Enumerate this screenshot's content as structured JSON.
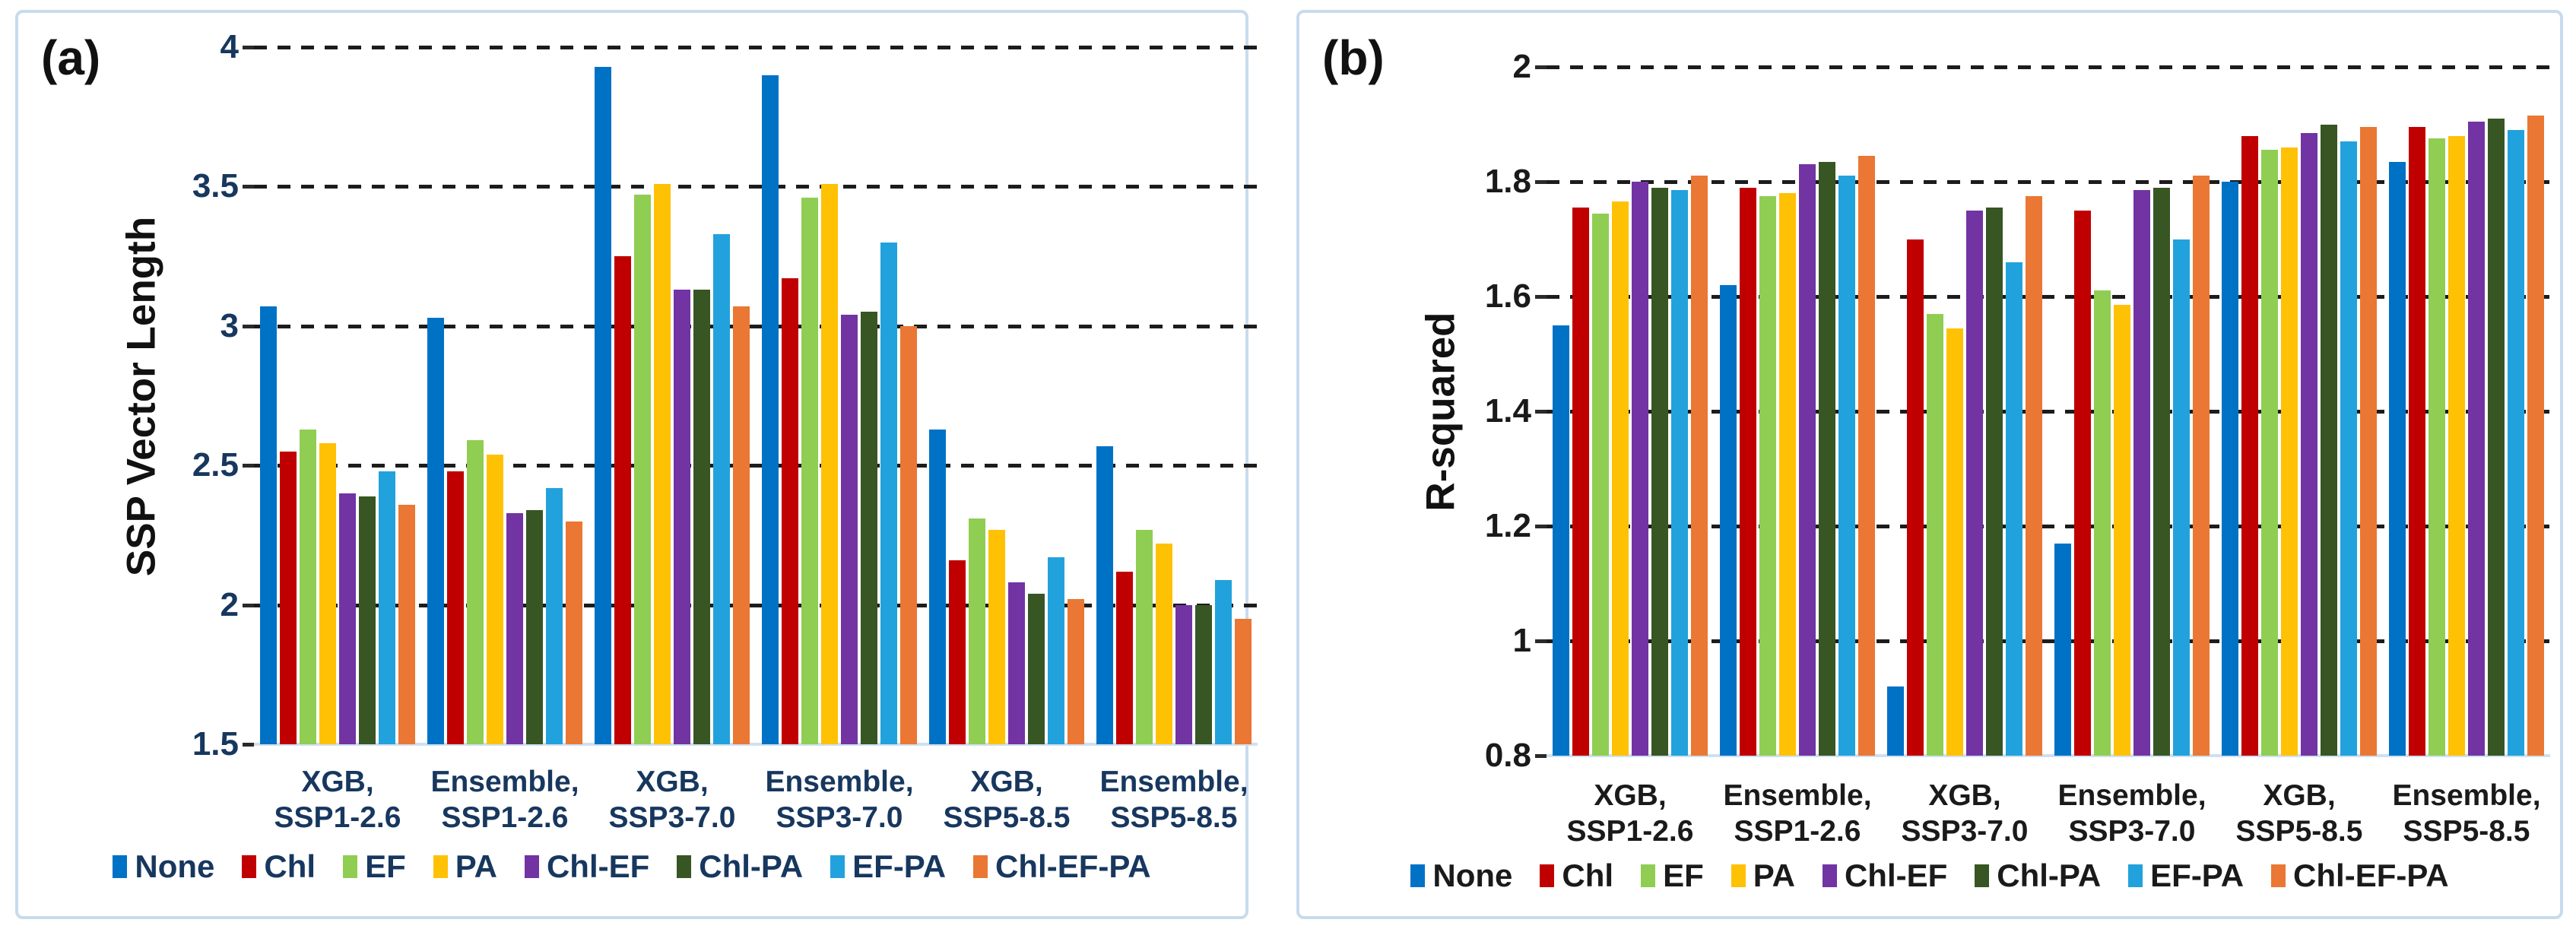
{
  "figure": {
    "background": "#ffffff",
    "panel_border_color": "#c8dbed"
  },
  "series_colors": {
    "None": "#0072C6",
    "Chl": "#C00000",
    "EF": "#8FCE52",
    "PA": "#FFC103",
    "Chl-EF": "#7233A3",
    "Chl-PA": "#375623",
    "EF-PA": "#22A2DC",
    "Chl-EF-PA": "#EA7733"
  },
  "chart_data": [
    {
      "type": "bar",
      "panel_label": "(a)",
      "ylabel": "SSP Vector Length",
      "xlabel": "",
      "ylim": [
        1.5,
        4
      ],
      "grid": "dashed horizontal",
      "legend_position": "bottom",
      "text_color": "#17375E",
      "axis_title_color": "#111111",
      "ticks": [
        {
          "v": 4,
          "label": "4"
        },
        {
          "v": 3.5,
          "label": "3.5"
        },
        {
          "v": 3,
          "label": "3"
        },
        {
          "v": 2.5,
          "label": "2.5"
        },
        {
          "v": 2,
          "label": "2"
        },
        {
          "v": 1.5,
          "label": "1.5"
        }
      ],
      "gridlines": [
        4,
        3.5,
        3,
        2.5,
        2
      ],
      "categories": [
        [
          "XGB,",
          "SSP1-2.6"
        ],
        [
          "Ensemble,",
          "SSP1-2.6"
        ],
        [
          "XGB,",
          "SSP3-7.0"
        ],
        [
          "Ensemble,",
          "SSP3-7.0"
        ],
        [
          "XGB,",
          "SSP5-8.5"
        ],
        [
          "Ensemble,",
          "SSP5-8.5"
        ]
      ],
      "series": [
        {
          "name": "None",
          "color": "#0072C6",
          "values": [
            3.07,
            3.03,
            3.93,
            3.9,
            2.63,
            2.57
          ]
        },
        {
          "name": "Chl",
          "color": "#C00000",
          "values": [
            2.55,
            2.48,
            3.25,
            3.17,
            2.16,
            2.12
          ]
        },
        {
          "name": "EF",
          "color": "#8FCE52",
          "values": [
            2.63,
            2.59,
            3.47,
            3.46,
            2.31,
            2.27
          ]
        },
        {
          "name": "PA",
          "color": "#FFC103",
          "values": [
            2.58,
            2.54,
            3.51,
            3.51,
            2.27,
            2.22
          ]
        },
        {
          "name": "Chl-EF",
          "color": "#7233A3",
          "values": [
            2.4,
            2.33,
            3.13,
            3.04,
            2.08,
            2.0
          ]
        },
        {
          "name": "Chl-PA",
          "color": "#375623",
          "values": [
            2.39,
            2.34,
            3.13,
            3.05,
            2.04,
            2.0
          ]
        },
        {
          "name": "EF-PA",
          "color": "#22A2DC",
          "values": [
            2.48,
            2.42,
            3.33,
            3.3,
            2.17,
            2.09
          ]
        },
        {
          "name": "Chl-EF-PA",
          "color": "#EA7733",
          "values": [
            2.36,
            2.3,
            3.07,
            3.0,
            2.02,
            1.95
          ]
        }
      ]
    },
    {
      "type": "bar",
      "panel_label": "(b)",
      "ylabel": "R-squared",
      "xlabel": "",
      "ylim": [
        0.8,
        2
      ],
      "grid": "dashed horizontal",
      "legend_position": "bottom",
      "text_color": "#1a1a1a",
      "axis_title_color": "#111111",
      "ticks": [
        {
          "v": 2,
          "label": "2"
        },
        {
          "v": 1.8,
          "label": "1.8"
        },
        {
          "v": 1.6,
          "label": "1.6"
        },
        {
          "v": 1.4,
          "label": "1.4"
        },
        {
          "v": 1.2,
          "label": "1.2"
        },
        {
          "v": 1,
          "label": "1"
        },
        {
          "v": 0.8,
          "label": "0.8"
        }
      ],
      "gridlines": [
        2,
        1.8,
        1.6,
        1.4,
        1.2,
        1
      ],
      "categories": [
        [
          "XGB,",
          "SSP1-2.6"
        ],
        [
          "Ensemble,",
          "SSP1-2.6"
        ],
        [
          "XGB,",
          "SSP3-7.0"
        ],
        [
          "Ensemble,",
          "SSP3-7.0"
        ],
        [
          "XGB,",
          "SSP5-8.5"
        ],
        [
          "Ensemble,",
          "SSP5-8.5"
        ]
      ],
      "series": [
        {
          "name": "None",
          "color": "#0072C6",
          "values": [
            1.55,
            1.62,
            0.92,
            1.17,
            1.8,
            1.835
          ]
        },
        {
          "name": "Chl",
          "color": "#C00000",
          "values": [
            1.755,
            1.79,
            1.7,
            1.75,
            1.88,
            1.895
          ]
        },
        {
          "name": "EF",
          "color": "#8FCE52",
          "values": [
            1.745,
            1.775,
            1.57,
            1.61,
            1.855,
            1.875
          ]
        },
        {
          "name": "PA",
          "color": "#FFC103",
          "values": [
            1.765,
            1.78,
            1.545,
            1.585,
            1.86,
            1.88
          ]
        },
        {
          "name": "Chl-EF",
          "color": "#7233A3",
          "values": [
            1.8,
            1.83,
            1.75,
            1.785,
            1.885,
            1.905
          ]
        },
        {
          "name": "Chl-PA",
          "color": "#375623",
          "values": [
            1.79,
            1.835,
            1.755,
            1.79,
            1.9,
            1.91
          ]
        },
        {
          "name": "EF-PA",
          "color": "#22A2DC",
          "values": [
            1.785,
            1.81,
            1.66,
            1.7,
            1.87,
            1.89
          ]
        },
        {
          "name": "Chl-EF-PA",
          "color": "#EA7733",
          "values": [
            1.81,
            1.845,
            1.775,
            1.81,
            1.895,
            1.915
          ]
        }
      ]
    }
  ]
}
